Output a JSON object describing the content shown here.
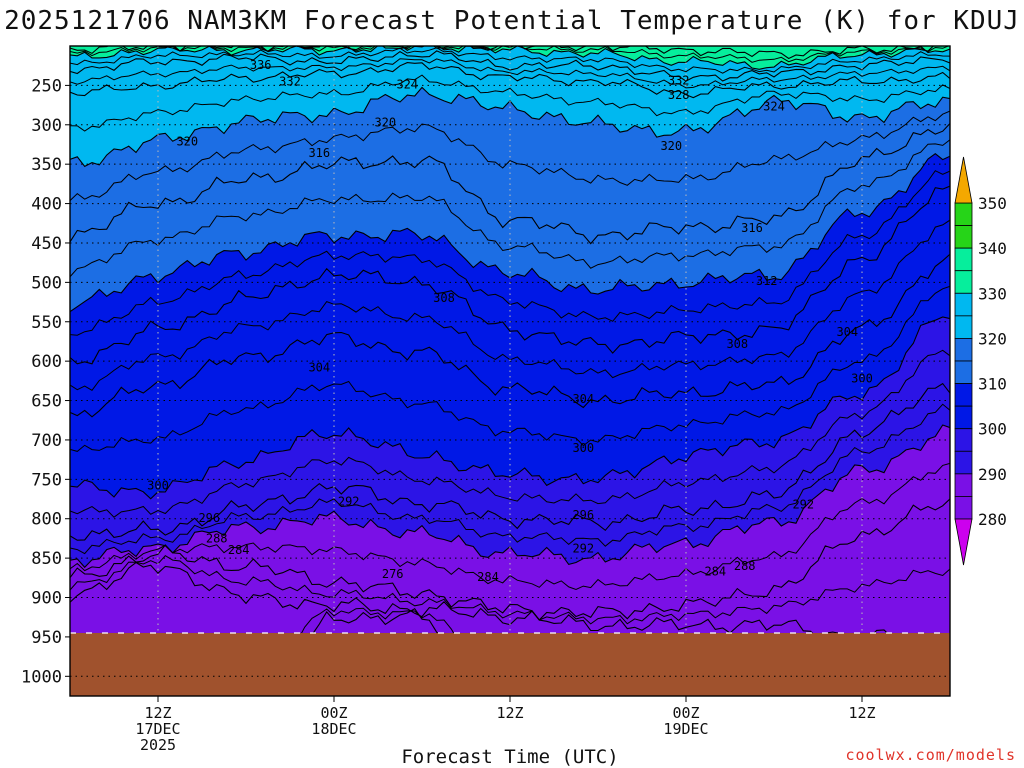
{
  "chart_data": {
    "type": "contour",
    "title": "2025121706 NAM3KM Forecast Potential Temperature (K) for KDUJ",
    "xlabel": "Forecast Time (UTC)",
    "ylabel": "",
    "y_ticks": [
      250,
      300,
      350,
      400,
      450,
      500,
      550,
      600,
      650,
      700,
      750,
      800,
      850,
      900,
      950,
      1000
    ],
    "y_range": [
      200,
      1025
    ],
    "x_range_hours": [
      0,
      60
    ],
    "x_ticks": [
      {
        "hour": 6,
        "lines": [
          "12Z",
          "17DEC",
          "2025"
        ]
      },
      {
        "hour": 18,
        "lines": [
          "00Z",
          "18DEC"
        ]
      },
      {
        "hour": 30,
        "lines": [
          "12Z"
        ]
      },
      {
        "hour": 42,
        "lines": [
          "00Z",
          "19DEC"
        ]
      },
      {
        "hour": 54,
        "lines": [
          "12Z"
        ]
      }
    ],
    "surface_pressure_hpa": 945,
    "colorbar": {
      "levels": [
        280,
        290,
        300,
        310,
        320,
        330,
        340,
        350
      ],
      "colors": [
        "#cc00ee",
        "#7a10e6",
        "#2c14e6",
        "#0018e6",
        "#1c6ee4",
        "#00b8f0",
        "#06ee9c",
        "#26d418",
        "#9ae838",
        "#f4f000",
        "#f4a800"
      ]
    },
    "contour_labels": [
      {
        "text": "336",
        "hour": 13.0,
        "p": 224
      },
      {
        "text": "332",
        "hour": 15.0,
        "p": 245
      },
      {
        "text": "324",
        "hour": 23.0,
        "p": 249
      },
      {
        "text": "332",
        "hour": 41.5,
        "p": 244
      },
      {
        "text": "328",
        "hour": 41.5,
        "p": 262
      },
      {
        "text": "324",
        "hour": 48.0,
        "p": 277
      },
      {
        "text": "320",
        "hour": 21.5,
        "p": 297
      },
      {
        "text": "320",
        "hour": 8.0,
        "p": 321
      },
      {
        "text": "316",
        "hour": 17.0,
        "p": 336
      },
      {
        "text": "320",
        "hour": 41.0,
        "p": 327
      },
      {
        "text": "316",
        "hour": 46.5,
        "p": 431
      },
      {
        "text": "312",
        "hour": 47.5,
        "p": 498
      },
      {
        "text": "308",
        "hour": 25.5,
        "p": 520
      },
      {
        "text": "308",
        "hour": 45.5,
        "p": 578
      },
      {
        "text": "304",
        "hour": 53.0,
        "p": 563
      },
      {
        "text": "304",
        "hour": 17.0,
        "p": 608
      },
      {
        "text": "304",
        "hour": 35.0,
        "p": 648
      },
      {
        "text": "300",
        "hour": 54.0,
        "p": 622
      },
      {
        "text": "300",
        "hour": 35.0,
        "p": 710
      },
      {
        "text": "300",
        "hour": 6.0,
        "p": 758
      },
      {
        "text": "296",
        "hour": 9.5,
        "p": 799
      },
      {
        "text": "292",
        "hour": 19.0,
        "p": 778
      },
      {
        "text": "296",
        "hour": 35.0,
        "p": 795
      },
      {
        "text": "292",
        "hour": 50.0,
        "p": 782
      },
      {
        "text": "288",
        "hour": 10.0,
        "p": 825
      },
      {
        "text": "284",
        "hour": 11.5,
        "p": 840
      },
      {
        "text": "292",
        "hour": 35.0,
        "p": 838
      },
      {
        "text": "276",
        "hour": 22.0,
        "p": 870
      },
      {
        "text": "284",
        "hour": 28.5,
        "p": 874
      },
      {
        "text": "288",
        "hour": 46.0,
        "p": 860
      },
      {
        "text": "284",
        "hour": 44.0,
        "p": 867
      }
    ],
    "field": {
      "hours": [
        0,
        6,
        12,
        18,
        24,
        30,
        36,
        42,
        48,
        54,
        60
      ],
      "isentropes": [
        {
          "theta": 280,
          "p": [
            1100,
            1100,
            1100,
            925,
            925,
            1100,
            1100,
            1100,
            1100,
            1100,
            1100
          ]
        },
        {
          "theta": 284,
          "p": [
            895,
            860,
            900,
            910,
            915,
            925,
            935,
            935,
            935,
            950,
            950
          ]
        },
        {
          "theta": 288,
          "p": [
            875,
            845,
            860,
            880,
            895,
            915,
            920,
            910,
            890,
            820,
            780
          ]
        },
        {
          "theta": 292,
          "p": [
            855,
            835,
            810,
            800,
            820,
            845,
            850,
            830,
            805,
            740,
            690
          ]
        },
        {
          "theta": 296,
          "p": [
            820,
            815,
            785,
            760,
            780,
            800,
            805,
            790,
            770,
            690,
            630
          ]
        },
        {
          "theta": 300,
          "p": [
            760,
            765,
            725,
            690,
            720,
            745,
            750,
            720,
            700,
            640,
            540
          ]
        },
        {
          "theta": 304,
          "p": [
            670,
            630,
            595,
            570,
            590,
            635,
            650,
            640,
            630,
            560,
            470
          ]
        },
        {
          "theta": 308,
          "p": [
            600,
            560,
            520,
            490,
            500,
            560,
            580,
            570,
            560,
            470,
            380
          ]
        },
        {
          "theta": 312,
          "p": [
            530,
            490,
            460,
            440,
            440,
            490,
            510,
            500,
            490,
            410,
            340
          ]
        },
        {
          "theta": 316,
          "p": [
            440,
            400,
            370,
            350,
            345,
            420,
            440,
            430,
            420,
            345,
            300
          ]
        },
        {
          "theta": 320,
          "p": [
            350,
            320,
            295,
            285,
            260,
            280,
            300,
            310,
            270,
            290,
            270
          ]
        },
        {
          "theta": 324,
          "p": [
            260,
            250,
            240,
            235,
            225,
            240,
            245,
            260,
            250,
            245,
            240
          ]
        },
        {
          "theta": 328,
          "p": [
            230,
            220,
            215,
            220,
            210,
            225,
            225,
            240,
            235,
            225,
            215
          ]
        },
        {
          "theta": 332,
          "p": [
            215,
            205,
            205,
            205,
            200,
            205,
            210,
            220,
            225,
            210,
            205
          ]
        },
        {
          "theta": 336,
          "p": [
            205,
            200,
            200,
            200,
            200,
            200,
            200,
            205,
            210,
            205,
            200
          ]
        }
      ]
    }
  },
  "chart_footer": {
    "credit": "coolwx.com/models"
  }
}
